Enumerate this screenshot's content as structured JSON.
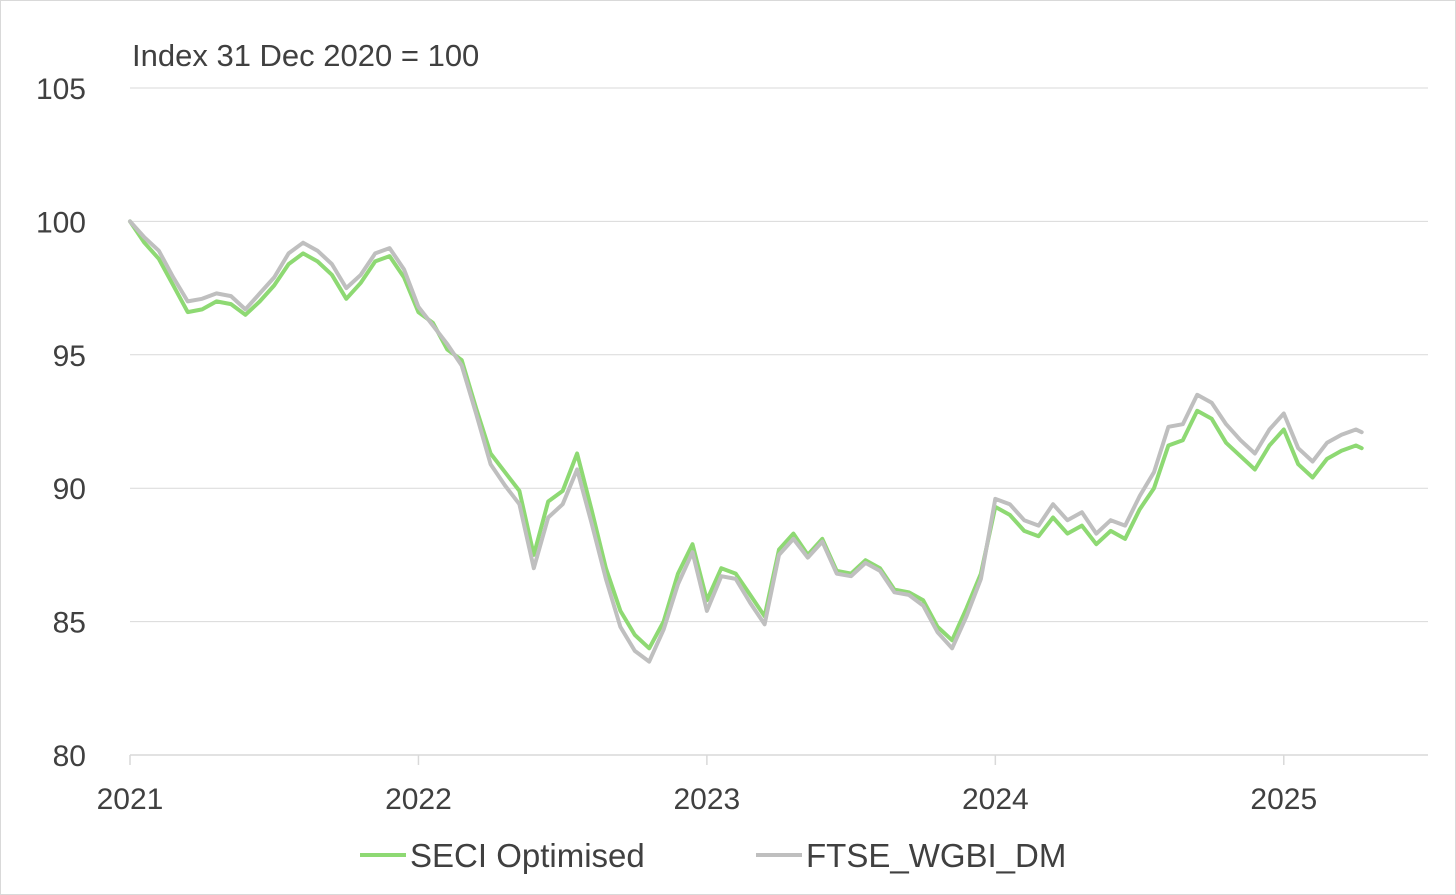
{
  "chart_data": {
    "type": "line",
    "title": "",
    "subtitle": "Index 31 Dec 2020 = 100",
    "xlabel": "",
    "ylabel": "",
    "xlim": [
      2021.0,
      2025.5
    ],
    "ylim": [
      80,
      105
    ],
    "y_ticks": [
      80,
      85,
      90,
      95,
      100,
      105
    ],
    "x_ticks": [
      2021,
      2022,
      2023,
      2024,
      2025
    ],
    "x_tick_labels": [
      "2021",
      "2022",
      "2023",
      "2024",
      "2025"
    ],
    "grid": true,
    "legend_position": "bottom",
    "series": [
      {
        "name": "SECI Optimised",
        "color": "#8ed973",
        "x": [
          2021.0,
          2021.05,
          2021.1,
          2021.15,
          2021.2,
          2021.25,
          2021.3,
          2021.35,
          2021.4,
          2021.45,
          2021.5,
          2021.55,
          2021.6,
          2021.65,
          2021.7,
          2021.75,
          2021.8,
          2021.85,
          2021.9,
          2021.95,
          2022.0,
          2022.05,
          2022.1,
          2022.15,
          2022.2,
          2022.25,
          2022.3,
          2022.35,
          2022.4,
          2022.45,
          2022.5,
          2022.55,
          2022.6,
          2022.65,
          2022.7,
          2022.75,
          2022.8,
          2022.85,
          2022.9,
          2022.95,
          2023.0,
          2023.05,
          2023.1,
          2023.15,
          2023.2,
          2023.25,
          2023.3,
          2023.35,
          2023.4,
          2023.45,
          2023.5,
          2023.55,
          2023.6,
          2023.65,
          2023.7,
          2023.75,
          2023.8,
          2023.85,
          2023.9,
          2023.95,
          2024.0,
          2024.05,
          2024.1,
          2024.15,
          2024.2,
          2024.25,
          2024.3,
          2024.35,
          2024.4,
          2024.45,
          2024.5,
          2024.55,
          2024.6,
          2024.65,
          2024.7,
          2024.75,
          2024.8,
          2024.85,
          2024.9,
          2024.95,
          2025.0,
          2025.05,
          2025.1,
          2025.15,
          2025.2,
          2025.25,
          2025.27
        ],
        "values": [
          100.0,
          99.2,
          98.6,
          97.6,
          96.6,
          96.7,
          97.0,
          96.9,
          96.5,
          97.0,
          97.6,
          98.4,
          98.8,
          98.5,
          98.0,
          97.1,
          97.7,
          98.5,
          98.7,
          97.9,
          96.6,
          96.2,
          95.2,
          94.8,
          93.0,
          91.3,
          90.6,
          89.9,
          87.5,
          89.5,
          89.9,
          91.3,
          89.2,
          87.0,
          85.4,
          84.5,
          84.0,
          85.0,
          86.8,
          87.9,
          85.8,
          87.0,
          86.8,
          86.0,
          85.2,
          87.7,
          88.3,
          87.5,
          88.1,
          86.9,
          86.8,
          87.3,
          87.0,
          86.2,
          86.1,
          85.8,
          84.8,
          84.3,
          85.5,
          86.8,
          89.3,
          89.0,
          88.4,
          88.2,
          88.9,
          88.3,
          88.6,
          87.9,
          88.4,
          88.1,
          89.2,
          90.0,
          91.6,
          91.8,
          92.9,
          92.6,
          91.7,
          91.2,
          90.7,
          91.6,
          92.2,
          90.9,
          90.4,
          91.1,
          91.4,
          91.6,
          91.5
        ]
      },
      {
        "name": "FTSE_WGBI_DM",
        "color": "#bfbfbf",
        "x": [
          2021.0,
          2021.05,
          2021.1,
          2021.15,
          2021.2,
          2021.25,
          2021.3,
          2021.35,
          2021.4,
          2021.45,
          2021.5,
          2021.55,
          2021.6,
          2021.65,
          2021.7,
          2021.75,
          2021.8,
          2021.85,
          2021.9,
          2021.95,
          2022.0,
          2022.05,
          2022.1,
          2022.15,
          2022.2,
          2022.25,
          2022.3,
          2022.35,
          2022.4,
          2022.45,
          2022.5,
          2022.55,
          2022.6,
          2022.65,
          2022.7,
          2022.75,
          2022.8,
          2022.85,
          2022.9,
          2022.95,
          2023.0,
          2023.05,
          2023.1,
          2023.15,
          2023.2,
          2023.25,
          2023.3,
          2023.35,
          2023.4,
          2023.45,
          2023.5,
          2023.55,
          2023.6,
          2023.65,
          2023.7,
          2023.75,
          2023.8,
          2023.85,
          2023.9,
          2023.95,
          2024.0,
          2024.05,
          2024.1,
          2024.15,
          2024.2,
          2024.25,
          2024.3,
          2024.35,
          2024.4,
          2024.45,
          2024.5,
          2024.55,
          2024.6,
          2024.65,
          2024.7,
          2024.75,
          2024.8,
          2024.85,
          2024.9,
          2024.95,
          2025.0,
          2025.05,
          2025.1,
          2025.15,
          2025.2,
          2025.25,
          2025.27
        ],
        "values": [
          100.0,
          99.4,
          98.9,
          97.9,
          97.0,
          97.1,
          97.3,
          97.2,
          96.7,
          97.3,
          97.9,
          98.8,
          99.2,
          98.9,
          98.4,
          97.5,
          98.0,
          98.8,
          99.0,
          98.2,
          96.8,
          96.1,
          95.4,
          94.6,
          92.8,
          90.9,
          90.1,
          89.4,
          87.0,
          88.9,
          89.4,
          90.7,
          88.7,
          86.6,
          84.8,
          83.9,
          83.5,
          84.7,
          86.4,
          87.6,
          85.4,
          86.7,
          86.6,
          85.7,
          84.9,
          87.5,
          88.1,
          87.4,
          88.0,
          86.8,
          86.7,
          87.2,
          86.9,
          86.1,
          86.0,
          85.6,
          84.6,
          84.0,
          85.2,
          86.6,
          89.6,
          89.4,
          88.8,
          88.6,
          89.4,
          88.8,
          89.1,
          88.3,
          88.8,
          88.6,
          89.7,
          90.6,
          92.3,
          92.4,
          93.5,
          93.2,
          92.4,
          91.8,
          91.3,
          92.2,
          92.8,
          91.5,
          91.0,
          91.7,
          92.0,
          92.2,
          92.1
        ]
      }
    ]
  }
}
